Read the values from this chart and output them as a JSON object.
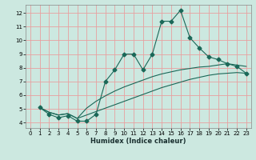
{
  "xlabel": "Humidex (Indice chaleur)",
  "bg_color": "#cce8e0",
  "grid_color": "#e8a0a0",
  "line_color": "#1a6858",
  "xlim": [
    -0.5,
    23.5
  ],
  "ylim": [
    3.6,
    12.6
  ],
  "xticks": [
    0,
    1,
    2,
    3,
    4,
    5,
    6,
    7,
    8,
    9,
    10,
    11,
    12,
    13,
    14,
    15,
    16,
    17,
    18,
    19,
    20,
    21,
    22,
    23
  ],
  "yticks": [
    4,
    5,
    6,
    7,
    8,
    9,
    10,
    11,
    12
  ],
  "line1_x": [
    1,
    2,
    3,
    4,
    5,
    6,
    7,
    8,
    9,
    10,
    11,
    12,
    13,
    14,
    15,
    16,
    17,
    18,
    19,
    20,
    21,
    22,
    23
  ],
  "line1_y": [
    5.1,
    4.6,
    4.35,
    4.5,
    4.1,
    4.1,
    4.6,
    7.0,
    7.85,
    9.0,
    9.0,
    7.85,
    9.0,
    11.4,
    11.4,
    12.2,
    10.2,
    9.45,
    8.8,
    8.6,
    8.3,
    8.1,
    7.6
  ],
  "line2_x": [
    1,
    2,
    3,
    4,
    5,
    6,
    7,
    8,
    9,
    10,
    11,
    12,
    13,
    14,
    15,
    16,
    17,
    18,
    19,
    20,
    21,
    22,
    23
  ],
  "line2_y": [
    5.1,
    4.75,
    4.55,
    4.65,
    4.3,
    4.55,
    4.8,
    5.05,
    5.3,
    5.55,
    5.8,
    6.05,
    6.3,
    6.55,
    6.75,
    6.95,
    7.15,
    7.3,
    7.45,
    7.55,
    7.6,
    7.65,
    7.6
  ],
  "line3_x": [
    1,
    2,
    3,
    4,
    5,
    6,
    7,
    8,
    9,
    10,
    11,
    12,
    13,
    14,
    15,
    16,
    17,
    18,
    19,
    20,
    21,
    22,
    23
  ],
  "line3_y": [
    5.1,
    4.75,
    4.55,
    4.65,
    4.3,
    5.05,
    5.55,
    5.95,
    6.3,
    6.6,
    6.85,
    7.1,
    7.35,
    7.55,
    7.7,
    7.85,
    7.95,
    8.05,
    8.1,
    8.2,
    8.3,
    8.2,
    8.1
  ],
  "marker": "D",
  "markersize": 2.5,
  "linewidth": 0.8
}
